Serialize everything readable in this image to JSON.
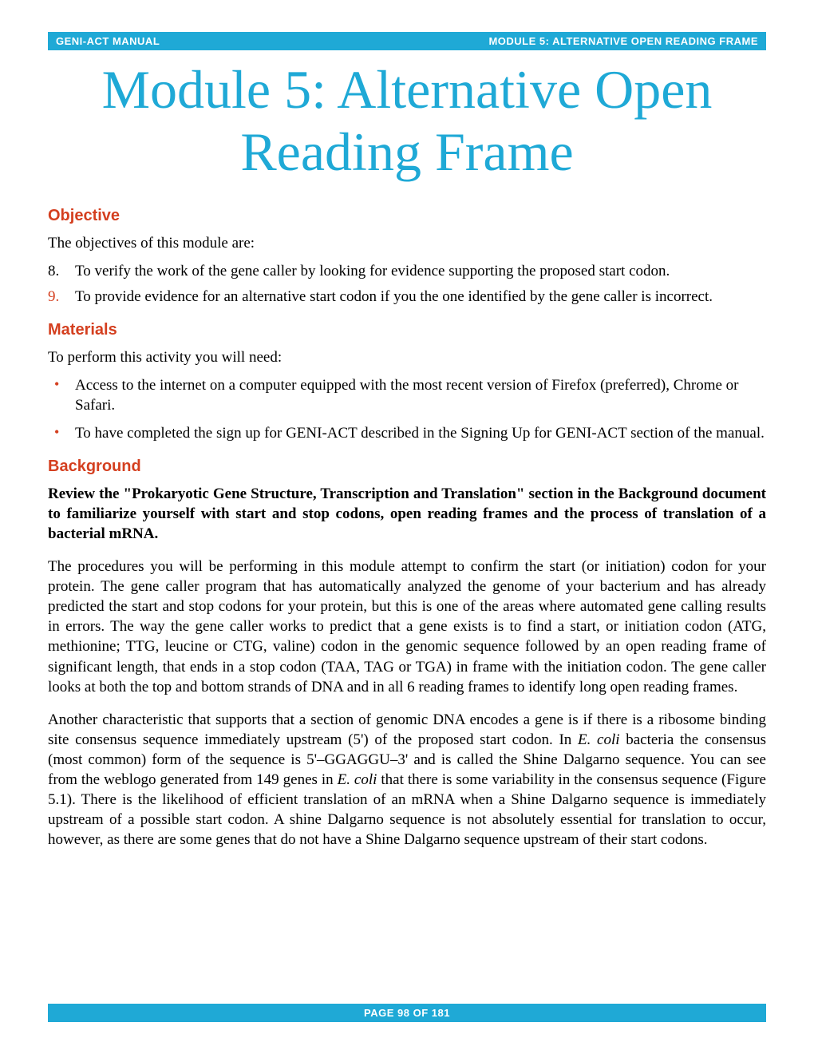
{
  "header": {
    "left": "GENI-ACT MANUAL",
    "right": "MODULE 5:  ALTERNATIVE OPEN READING FRAME"
  },
  "title": "Module 5:  Alternative Open Reading Frame",
  "sections": {
    "objective": {
      "heading": "Objective",
      "intro": "The objectives of this module are:",
      "items": [
        {
          "num": "8.",
          "text": "To verify the work of the gene caller by looking for evidence supporting the proposed start codon."
        },
        {
          "num": "9.",
          "text": "To provide evidence for an alternative start codon if you the one identified by the gene caller is incorrect."
        }
      ]
    },
    "materials": {
      "heading": "Materials",
      "intro": "To perform this activity you will need:",
      "items": [
        "Access to the internet on a computer equipped with the most recent version of Firefox (preferred), Chrome or Safari.",
        "To have completed the sign up for GENI-ACT described in the Signing Up for GENI-ACT section of the manual."
      ]
    },
    "background": {
      "heading": "Background",
      "bold_intro": "Review the  \"Prokaryotic Gene Structure, Transcription and Translation\" section in the Background document to familiarize yourself with start and stop codons, open reading frames and the process of translation of a bacterial mRNA.",
      "p1": "The procedures you will be performing in this module attempt to confirm the start (or initiation) codon for your protein.  The gene caller program that has automatically analyzed the genome of your bacterium and has already predicted the start and stop codons for your protein, but this is one of the areas where automated gene calling results in errors.  The way the gene caller works to predict that a gene exists is to find a start, or initiation codon (ATG, methionine; TTG, leucine or CTG, valine) codon in the genomic sequence followed by an open reading frame of significant length, that ends in a stop codon (TAA, TAG or TGA) in frame with the initiation codon.  The gene caller looks at both the top and bottom strands of DNA and in all 6 reading frames to identify long open reading frames.",
      "p2_a": "Another characteristic that supports that a section of genomic DNA encodes a gene is if there is a ribosome binding site consensus sequence immediately upstream (5') of the proposed start codon.  In ",
      "p2_ecoli1": "E. coli",
      "p2_b": " bacteria the consensus (most common) form of the sequence is 5'–GGAGGU–3' and is called the Shine Dalgarno sequence.  You can see from the weblogo generated from 149 genes in ",
      "p2_ecoli2": "E. coli",
      "p2_c": " that there is some variability in the consensus sequence (Figure 5.1).  There is the likelihood of efficient translation of an mRNA when a Shine Dalgarno sequence is immediately upstream of a possible start codon.  A shine Dalgarno sequence is not absolutely essential for translation to occur, however, as there are some genes that do not have a Shine Dalgarno sequence upstream of their start codons."
    }
  },
  "footer": "PAGE 98 OF 181",
  "colors": {
    "accent_blue": "#1fa9d6",
    "accent_red": "#d43f1f",
    "text": "#000000",
    "bg": "#ffffff"
  }
}
